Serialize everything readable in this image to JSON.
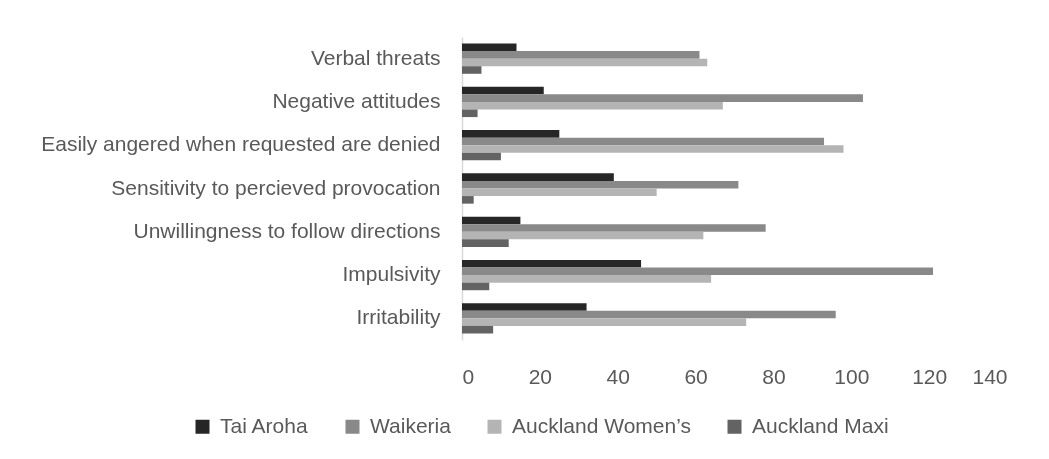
{
  "chart_data": {
    "type": "bar",
    "orientation": "horizontal",
    "categories": [
      "Verbal threats",
      "Negative attitudes",
      "Easily angered when requested are denied",
      "Sensitivity to percieved provocation",
      "Unwillingness to follow directions",
      "Impulsivity",
      "Irritability"
    ],
    "series": [
      {
        "name": "Tai Aroha",
        "color": "#262626",
        "values": [
          14,
          21,
          25,
          39,
          15,
          46,
          32
        ]
      },
      {
        "name": "Waikeria",
        "color": "#898989",
        "values": [
          61,
          103,
          93,
          71,
          78,
          121,
          96
        ]
      },
      {
        "name": "Auckland Women’s",
        "color": "#b4b4b4",
        "values": [
          63,
          67,
          98,
          50,
          62,
          64,
          73
        ]
      },
      {
        "name": "Auckland Maxi",
        "color": "#636363",
        "values": [
          5,
          4,
          10,
          3,
          12,
          7,
          8
        ]
      }
    ],
    "xlim": [
      0,
      140
    ],
    "xticks": [
      0,
      20,
      40,
      60,
      80,
      100,
      120,
      140
    ],
    "legend": "bottom"
  }
}
